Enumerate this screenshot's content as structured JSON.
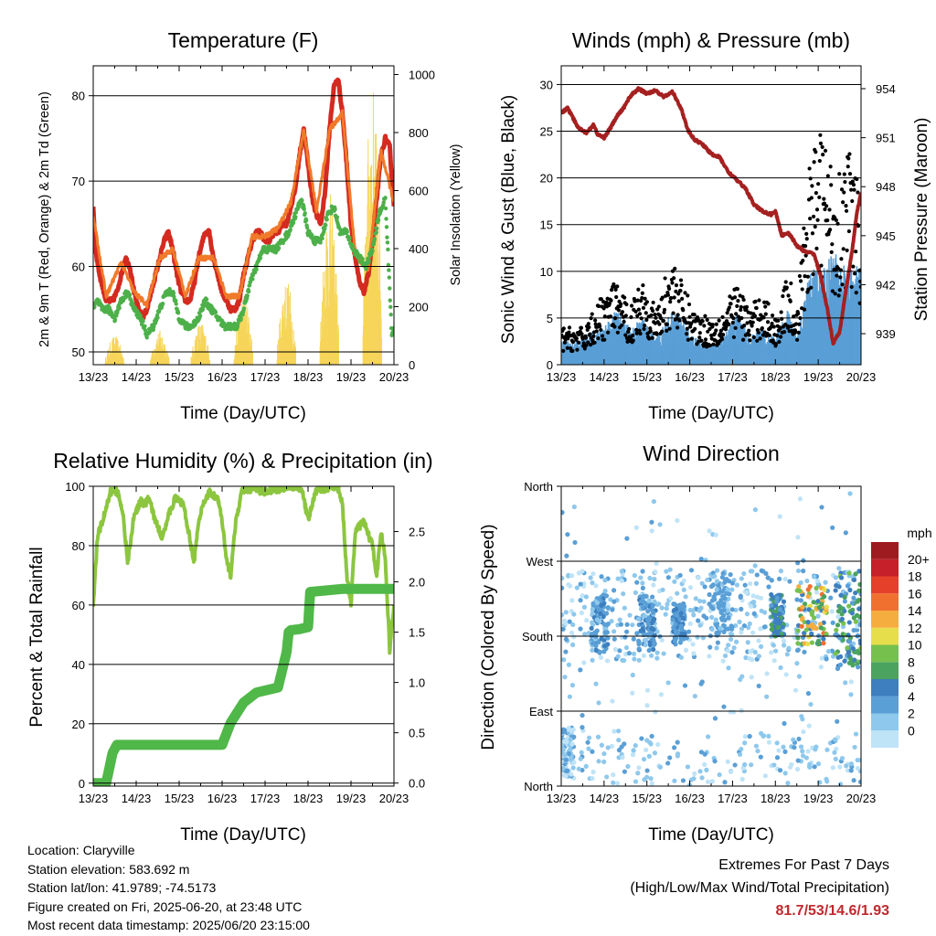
{
  "panels": {
    "temperature": {
      "title": "Temperature (F)",
      "ylabel_left": "2m & 9m T (Red, Orange) & 2m Td (Green)",
      "ylabel_right": "Solar Insolation (Yellow)",
      "xlabel": "Time (Day/UTC)"
    },
    "winds": {
      "title": "Winds (mph) & Pressure (mb)",
      "ylabel_left": "Sonic Wind & Gust (Blue, Black)",
      "ylabel_right": "Station Pressure (Maroon)",
      "xlabel": "Time (Day/UTC)"
    },
    "humidity": {
      "title": "Relative Humidity (%) & Precipitation (in)",
      "ylabel_left": "Percent & Total Rainfall",
      "xlabel": "Time (Day/UTC)"
    },
    "direction": {
      "title": "Wind Direction",
      "ylabel_left": "Direction (Colored By Speed)",
      "xlabel": "Time (Day/UTC)",
      "colorbar_title": "mph"
    }
  },
  "info": {
    "location": "Location: Claryville",
    "elevation": "Station elevation: 583.692 m",
    "latlon": "Station lat/lon: 41.9789; -74.5173",
    "created": "Figure created on Fri, 2025-06-20, at 23:48 UTC",
    "recent": "Most recent data timestamp: 2025/06/20 23:15:00"
  },
  "extremes": {
    "line1": "Extremes For Past 7 Days",
    "line2": "(High/Low/Max Wind/Total Precipitation)",
    "values": "81.7/53/14.6/1.93"
  },
  "colors": {
    "temp_2m": "#d42a20",
    "temp_9m": "#f07a2a",
    "dewpoint": "#4db04a",
    "solar": "#f6d55a",
    "wind": "#5a9fd6",
    "gust": "#000000",
    "pressure": "#a52020",
    "rh": "#8cc63f",
    "precip": "#4fb848"
  },
  "chart_data": [
    {
      "type": "line",
      "title": "Temperature (F)",
      "xlabel": "Time (Day/UTC)",
      "ylabel": "2m & 9m T (Red, Orange) & 2m Td (Green)",
      "y2label": "Solar Insolation (Yellow)",
      "x_ticks": [
        "13/23",
        "14/23",
        "15/23",
        "16/23",
        "17/23",
        "18/23",
        "19/23",
        "20/23"
      ],
      "xlim": [
        0,
        7
      ],
      "ylim": [
        48.5,
        83.5
      ],
      "y_ticks": [
        50,
        60,
        70,
        80
      ],
      "y2lim": [
        0,
        1030
      ],
      "y2_ticks": [
        0,
        200,
        400,
        600,
        800,
        1000
      ],
      "grid": true,
      "series": [
        {
          "name": "2m T",
          "axis": "left",
          "color": "#d42a20",
          "x": [
            0,
            0.05,
            0.15,
            0.3,
            0.45,
            0.55,
            0.65,
            0.75,
            0.85,
            0.95,
            1.05,
            1.15,
            1.25,
            1.35,
            1.45,
            1.55,
            1.65,
            1.75,
            1.85,
            1.95,
            2.05,
            2.15,
            2.25,
            2.35,
            2.45,
            2.6,
            2.7,
            2.8,
            2.9,
            3.0,
            3.1,
            3.2,
            3.3,
            3.4,
            3.5,
            3.6,
            3.7,
            3.8,
            3.9,
            4.0,
            4.1,
            4.2,
            4.3,
            4.4,
            4.5,
            4.6,
            4.7,
            4.8,
            4.9,
            5.0,
            5.1,
            5.2,
            5.3,
            5.4,
            5.5,
            5.6,
            5.7,
            5.8,
            5.9,
            6.0,
            6.1,
            6.2,
            6.3,
            6.4,
            6.5,
            6.6,
            6.7,
            6.8,
            6.9,
            7.0
          ],
          "values": [
            67,
            62,
            59,
            56,
            56,
            57,
            59,
            61,
            60,
            57,
            55,
            54,
            55,
            57,
            59,
            61,
            63,
            64,
            62,
            59,
            57,
            56,
            56,
            58,
            61,
            64,
            64,
            61,
            59,
            57,
            56,
            55,
            55,
            56,
            59,
            61,
            63,
            64,
            64,
            63,
            63,
            64,
            64,
            65,
            65,
            67,
            69,
            73,
            76,
            72,
            68,
            66,
            65,
            69,
            76,
            81,
            82,
            78,
            72,
            65,
            61,
            58,
            57,
            59,
            63,
            68,
            73,
            75,
            74,
            67
          ]
        },
        {
          "name": "9m T",
          "axis": "left",
          "color": "#f07a2a",
          "x": [
            0,
            0.3,
            0.65,
            0.95,
            1.25,
            1.55,
            1.85,
            2.15,
            2.45,
            2.8,
            3.1,
            3.4,
            3.7,
            4.0,
            4.3,
            4.6,
            4.9,
            5.2,
            5.5,
            5.8,
            6.1,
            6.4,
            6.7,
            7.0
          ],
          "values": [
            66,
            56.5,
            60.5,
            57,
            55.5,
            61,
            62,
            56.5,
            61,
            61,
            56.5,
            56.5,
            63.5,
            63.5,
            64.5,
            67.5,
            76,
            66.5,
            76,
            78,
            61.5,
            59.5,
            73.5,
            67.5
          ]
        },
        {
          "name": "2m Td",
          "axis": "left",
          "color": "#4db04a",
          "x": [
            0,
            0.1,
            0.2,
            0.35,
            0.5,
            0.65,
            0.8,
            0.95,
            1.1,
            1.25,
            1.4,
            1.55,
            1.7,
            1.85,
            2.0,
            2.15,
            2.3,
            2.45,
            2.6,
            2.75,
            2.9,
            3.05,
            3.2,
            3.35,
            3.5,
            3.65,
            3.8,
            3.95,
            4.1,
            4.25,
            4.4,
            4.55,
            4.7,
            4.85,
            5.0,
            5.15,
            5.3,
            5.45,
            5.6,
            5.75,
            5.9,
            6.05,
            6.2,
            6.35,
            6.5,
            6.65,
            6.8,
            6.95,
            7.0
          ],
          "values": [
            55,
            56,
            55,
            55,
            54,
            56,
            57,
            55,
            54,
            52,
            53,
            55,
            57,
            57,
            54,
            53,
            53,
            54,
            56,
            55,
            54,
            53,
            53,
            53,
            55,
            58,
            60,
            62,
            62,
            62,
            63,
            64,
            66,
            68,
            64,
            63,
            63,
            66,
            67,
            64,
            64,
            62,
            61,
            60,
            62,
            66,
            68,
            52,
            53
          ]
        }
      ],
      "solar": {
        "name": "Solar Insolation",
        "axis": "right",
        "color": "#f6d55a",
        "days": [
          {
            "x": 0.5,
            "peak": 100
          },
          {
            "x": 1.55,
            "peak": 120
          },
          {
            "x": 2.5,
            "peak": 150
          },
          {
            "x": 3.5,
            "peak": 250
          },
          {
            "x": 4.5,
            "peak": 300
          },
          {
            "x": 5.5,
            "peak": 600
          },
          {
            "x": 6.5,
            "peak": 980
          }
        ]
      }
    },
    {
      "type": "scatter",
      "title": "Winds (mph) & Pressure (mb)",
      "xlabel": "Time (Day/UTC)",
      "ylabel": "Sonic Wind & Gust (Blue, Black)",
      "y2label": "Station Pressure (Maroon)",
      "x_ticks": [
        "13/23",
        "14/23",
        "15/23",
        "16/23",
        "17/23",
        "18/23",
        "19/23",
        "20/23"
      ],
      "xlim": [
        0,
        7
      ],
      "ylim": [
        0,
        32
      ],
      "y_ticks": [
        0,
        5,
        10,
        15,
        20,
        25,
        30
      ],
      "y2lim": [
        937.1,
        955.4
      ],
      "y2_ticks": [
        939,
        942,
        945,
        948,
        951,
        954
      ],
      "grid": true,
      "wind_envelope": {
        "name": "Sonic Wind",
        "color": "#5a9fd6",
        "x": [
          0,
          0.5,
          0.9,
          1.3,
          1.6,
          1.9,
          2.2,
          2.6,
          2.8,
          3.1,
          3.5,
          3.8,
          4.1,
          4.4,
          4.7,
          5.0,
          5.3,
          5.5,
          5.8,
          6.1,
          6.4,
          6.7,
          7.0
        ],
        "values": [
          2.5,
          3,
          4,
          6,
          4,
          5,
          3,
          6,
          5,
          3,
          2,
          3,
          6,
          3,
          4,
          3,
          6,
          3,
          10,
          11,
          12,
          10,
          11
        ]
      },
      "gust_envelope": {
        "name": "Gust",
        "color": "#000000",
        "x": [
          0,
          0.5,
          0.9,
          1.3,
          1.6,
          1.9,
          2.2,
          2.6,
          2.8,
          3.1,
          3.5,
          3.8,
          4.1,
          4.4,
          4.7,
          5.0,
          5.3,
          5.5,
          5.8,
          6.1,
          6.4,
          6.7,
          7.0
        ],
        "values": [
          4,
          4,
          7,
          9,
          6,
          10,
          6,
          12,
          9,
          6,
          5,
          6,
          9,
          6,
          8,
          5,
          10,
          6,
          22,
          26,
          20,
          24,
          18
        ]
      },
      "pressure": {
        "name": "Station Pressure",
        "axis": "right",
        "color": "#a52020",
        "x": [
          0,
          0.15,
          0.4,
          0.6,
          0.75,
          0.85,
          1.0,
          1.15,
          1.3,
          1.45,
          1.6,
          1.8,
          2.0,
          2.2,
          2.4,
          2.6,
          2.8,
          2.95,
          3.1,
          3.3,
          3.5,
          3.7,
          3.9,
          4.1,
          4.3,
          4.5,
          4.7,
          4.9,
          5.0,
          5.15,
          5.3,
          5.5,
          5.7,
          5.9,
          6.05,
          6.2,
          6.35,
          6.5,
          6.65,
          6.8,
          6.9,
          7.0
        ],
        "values": [
          952.5,
          952.8,
          951.6,
          951.3,
          951.8,
          951.2,
          951.0,
          951.6,
          952.3,
          952.8,
          953.5,
          954.0,
          953.7,
          953.9,
          953.5,
          953.8,
          952.8,
          951.5,
          950.9,
          950.6,
          950.0,
          949.8,
          948.9,
          948.4,
          947.9,
          946.9,
          946.5,
          946.3,
          946.5,
          945.0,
          945.2,
          944.4,
          944.0,
          943.9,
          942.6,
          940.7,
          938.4,
          939.1,
          941.7,
          944.2,
          946.4,
          947.6
        ]
      }
    },
    {
      "type": "line",
      "title": "Relative Humidity (%) & Precipitation (in)",
      "xlabel": "Time (Day/UTC)",
      "ylabel": "Percent & Total Rainfall",
      "x_ticks": [
        "13/23",
        "14/23",
        "15/23",
        "16/23",
        "17/23",
        "18/23",
        "19/23",
        "20/23"
      ],
      "xlim": [
        0,
        7
      ],
      "ylim": [
        -1,
        100
      ],
      "y_ticks": [
        0,
        20,
        40,
        60,
        80,
        100
      ],
      "y2lim": [
        -0.03,
        2.95
      ],
      "y2_ticks": [
        0.0,
        0.5,
        1.0,
        1.5,
        2.0,
        2.5
      ],
      "grid": true,
      "series": [
        {
          "name": "Relative Humidity",
          "axis": "left",
          "color": "#8cc63f",
          "x": [
            0,
            0.1,
            0.25,
            0.4,
            0.5,
            0.6,
            0.7,
            0.8,
            0.95,
            1.1,
            1.2,
            1.3,
            1.45,
            1.6,
            1.75,
            1.9,
            2.1,
            2.25,
            2.35,
            2.45,
            2.55,
            2.7,
            2.9,
            3.0,
            3.1,
            3.2,
            3.3,
            3.45,
            3.6,
            3.8,
            4.0,
            4.2,
            4.35,
            4.5,
            4.7,
            4.85,
            5.0,
            5.2,
            5.4,
            5.5,
            5.6,
            5.7,
            5.8,
            5.9,
            6.0,
            6.1,
            6.3,
            6.5,
            6.6,
            6.7,
            6.8,
            6.9,
            7.0
          ],
          "values": [
            60,
            83,
            90,
            98,
            99,
            97,
            90,
            74,
            90,
            95,
            94,
            96,
            88,
            83,
            90,
            96,
            94,
            82,
            75,
            87,
            94,
            98,
            96,
            88,
            75,
            70,
            86,
            98,
            99,
            99,
            98,
            99,
            99,
            100,
            100,
            99,
            89,
            99,
            99,
            100,
            100,
            99,
            95,
            70,
            60,
            85,
            88,
            80,
            70,
            85,
            75,
            45,
            60
          ]
        },
        {
          "name": "Total Precipitation",
          "axis": "right",
          "color": "#4fb848",
          "x": [
            0,
            0.3,
            0.35,
            0.45,
            0.55,
            1.0,
            2.0,
            3.0,
            3.2,
            3.5,
            3.8,
            4.0,
            4.3,
            4.5,
            4.55,
            4.6,
            4.8,
            5.0,
            5.05,
            5.8,
            6.0,
            7.0
          ],
          "values": [
            0,
            0,
            0.1,
            0.3,
            0.38,
            0.38,
            0.38,
            0.38,
            0.6,
            0.8,
            0.9,
            0.92,
            0.95,
            1.3,
            1.5,
            1.52,
            1.53,
            1.55,
            1.9,
            1.93,
            1.93,
            1.93
          ]
        }
      ]
    },
    {
      "type": "scatter",
      "title": "Wind Direction",
      "xlabel": "Time (Day/UTC)",
      "ylabel": "Direction (Colored By Speed)",
      "x_ticks": [
        "13/23",
        "14/23",
        "15/23",
        "16/23",
        "17/23",
        "18/23",
        "19/23",
        "20/23"
      ],
      "xlim": [
        0,
        7
      ],
      "ylim": [
        0,
        360
      ],
      "y_tick_labels": [
        "North",
        "East",
        "South",
        "West",
        "North"
      ],
      "y_ticks": [
        0,
        90,
        180,
        270,
        360
      ],
      "grid": true,
      "colorbar": {
        "title": "mph",
        "labels": [
          "0",
          "2",
          "4",
          "6",
          "8",
          "10",
          "12",
          "14",
          "16",
          "18",
          "20+"
        ],
        "colors": [
          "#bfe3f7",
          "#8ec8ec",
          "#5a9fd6",
          "#3d7fbf",
          "#4aa35e",
          "#76c14e",
          "#e7de4c",
          "#f6ad3f",
          "#f0712f",
          "#e5402a",
          "#c6202a",
          "#9e1b20"
        ]
      },
      "clusters": [
        {
          "x_range": [
            0,
            0.3
          ],
          "dir_range": [
            10,
            70
          ],
          "speed_range": [
            0,
            4
          ]
        },
        {
          "x_range": [
            0.7,
            1.1
          ],
          "dir_range": [
            160,
            230
          ],
          "speed_range": [
            2,
            6
          ]
        },
        {
          "x_range": [
            1.8,
            2.2
          ],
          "dir_range": [
            160,
            230
          ],
          "speed_range": [
            2,
            6
          ]
        },
        {
          "x_range": [
            2.6,
            2.9
          ],
          "dir_range": [
            170,
            220
          ],
          "speed_range": [
            3,
            7
          ]
        },
        {
          "x_range": [
            3.5,
            4.0
          ],
          "dir_range": [
            180,
            260
          ],
          "speed_range": [
            2,
            5
          ]
        },
        {
          "x_range": [
            4.9,
            5.2
          ],
          "dir_range": [
            180,
            230
          ],
          "speed_range": [
            4,
            8
          ]
        },
        {
          "x_range": [
            5.5,
            6.2
          ],
          "dir_range": [
            170,
            240
          ],
          "speed_range": [
            6,
            16
          ]
        },
        {
          "x_range": [
            6.4,
            7.0
          ],
          "dir_range": [
            140,
            260
          ],
          "speed_range": [
            4,
            10
          ]
        }
      ]
    }
  ]
}
